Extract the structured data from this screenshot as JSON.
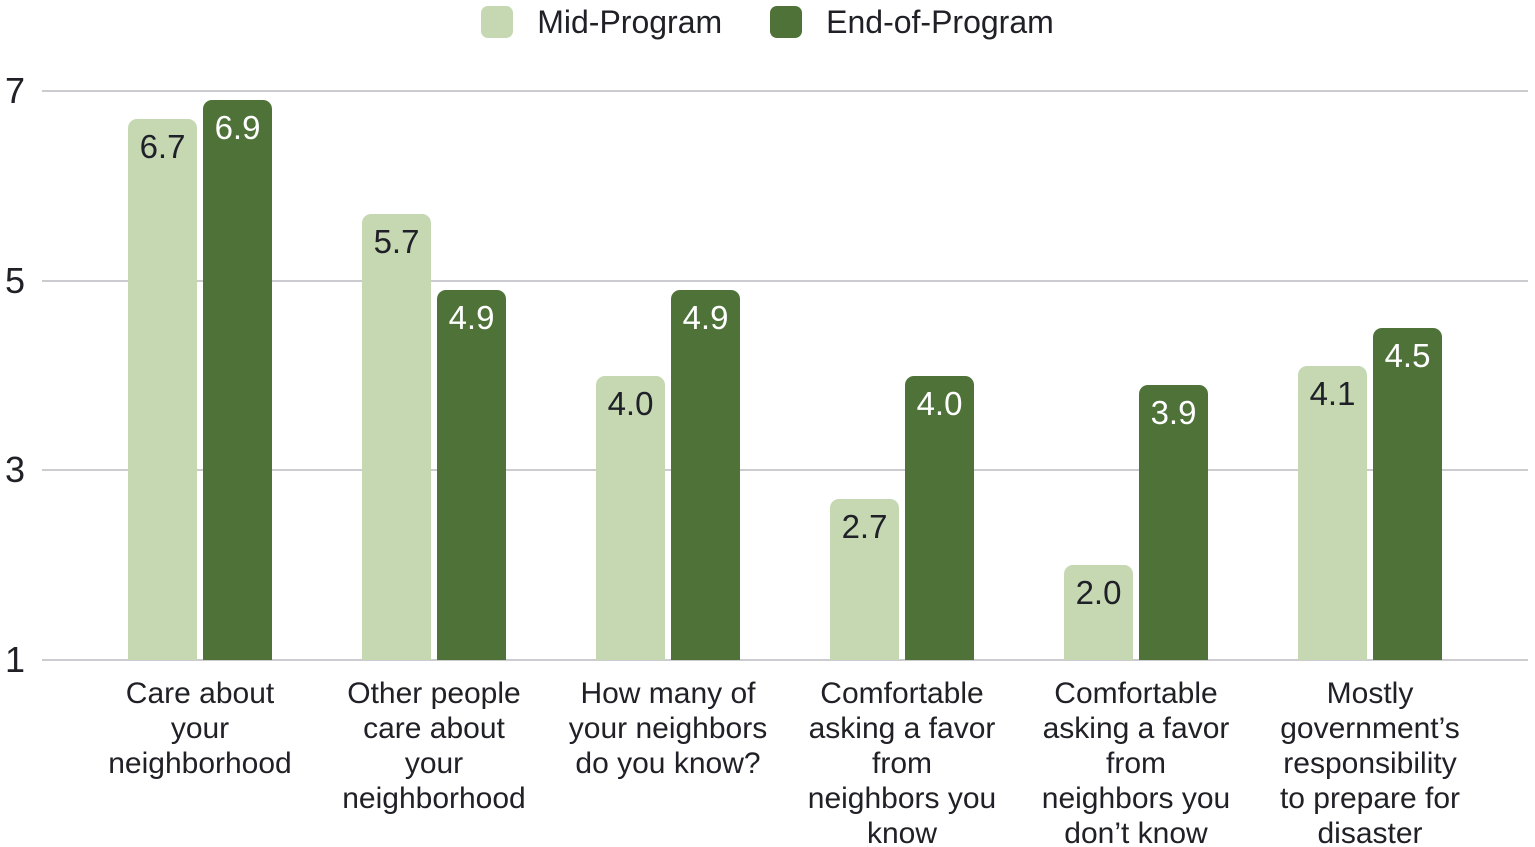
{
  "chart_data": {
    "type": "bar",
    "title": "",
    "categories": [
      "Care about your neighborhood",
      "Other people care about your neighborhood",
      "How many of your neighbors do you know?",
      "Comfortable asking a favor from neighbors you know",
      "Comfortable asking a favor from neighbors you don’t know",
      "Mostly government’s responsibility to prepare for disaster"
    ],
    "categories_wrapped": [
      "Care about\nyour\nneighborhood",
      "Other people\ncare about\nyour\nneighborhood",
      "How many of\nyour neighbors\ndo you know?",
      "Comfortable\nasking a favor\nfrom\nneighbors you\nknow",
      "Comfortable\nasking a favor\nfrom\nneighbors you\ndon’t know",
      "Mostly\ngovernment’s\nresponsibility\nto prepare for\ndisaster"
    ],
    "series": [
      {
        "name": "Mid-Program",
        "color": "#c5d8b2",
        "value_label_color": "#202028",
        "values": [
          6.7,
          5.7,
          4.0,
          2.7,
          2.0,
          4.1
        ],
        "labels": [
          "6.7",
          "5.7",
          "4.0",
          "2.7",
          "2.0",
          "4.1"
        ]
      },
      {
        "name": "End-of-Program",
        "color": "#4e7238",
        "value_label_color": "#ffffff",
        "values": [
          6.9,
          4.9,
          4.9,
          4.0,
          3.9,
          4.5
        ],
        "labels": [
          "6.9",
          "4.9",
          "4.9",
          "4.0",
          "3.9",
          "4.5"
        ]
      }
    ],
    "yticks": [
      7,
      5,
      3,
      1
    ],
    "ylim": [
      1,
      7
    ],
    "grid": true,
    "legend_position": "top"
  },
  "colors": {
    "background": "#ffffff",
    "grid": "#cbcbd0",
    "text": "#202027"
  }
}
